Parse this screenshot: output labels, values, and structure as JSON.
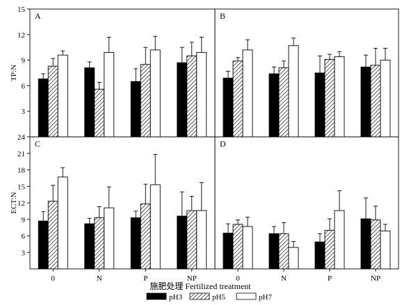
{
  "chart_data": {
    "type": "bar",
    "x_title": "施肥处理 Fertilized treatment",
    "categories": [
      "0",
      "N",
      "P",
      "NP"
    ],
    "legend": [
      {
        "name": "pH3",
        "fill": "solid-black"
      },
      {
        "name": "pH5",
        "fill": "hatched"
      },
      {
        "name": "pH7",
        "fill": "white"
      }
    ],
    "colors": {
      "pH3": "#000000",
      "pH5": "#ffffff",
      "pH7": "#ffffff",
      "axis": "#000000"
    },
    "rows": [
      {
        "ylabel": "TP:N",
        "ylim": [
          0,
          15
        ],
        "yticks": [
          3,
          6,
          9,
          12,
          15
        ],
        "panels": [
          {
            "label": "A",
            "series": [
              {
                "name": "pH3",
                "values": [
                  6.8,
                  8.1,
                  6.5,
                  8.7
                ],
                "errors": [
                  0.6,
                  0.7,
                  1.5,
                  1.8
                ]
              },
              {
                "name": "pH5",
                "values": [
                  8.3,
                  5.6,
                  8.5,
                  9.5
                ],
                "errors": [
                  0.9,
                  0.8,
                  2.0,
                  1.6
                ]
              },
              {
                "name": "pH7",
                "values": [
                  9.6,
                  9.9,
                  10.2,
                  9.9
                ],
                "errors": [
                  0.5,
                  1.8,
                  1.6,
                  1.8
                ]
              }
            ]
          },
          {
            "label": "B",
            "series": [
              {
                "name": "pH3",
                "values": [
                  6.9,
                  7.4,
                  7.5,
                  8.2
                ],
                "errors": [
                  0.8,
                  0.8,
                  2.0,
                  1.4
                ]
              },
              {
                "name": "pH5",
                "values": [
                  8.9,
                  8.1,
                  9.1,
                  8.4
                ],
                "errors": [
                  0.4,
                  0.8,
                  0.6,
                  2.0
                ]
              },
              {
                "name": "pH7",
                "values": [
                  10.2,
                  10.7,
                  9.4,
                  9.0
                ],
                "errors": [
                  1.2,
                  0.9,
                  0.6,
                  1.4
                ]
              }
            ]
          }
        ]
      },
      {
        "ylabel": "ECT:N",
        "ylim": [
          0,
          24
        ],
        "yticks": [
          3,
          6,
          9,
          12,
          15,
          18,
          21,
          24
        ],
        "panels": [
          {
            "label": "C",
            "series": [
              {
                "name": "pH3",
                "values": [
                  8.7,
                  8.2,
                  9.3,
                  9.6
                ],
                "errors": [
                  1.7,
                  1.0,
                  1.2,
                  4.4
                ]
              },
              {
                "name": "pH5",
                "values": [
                  12.3,
                  9.3,
                  11.8,
                  10.6
                ],
                "errors": [
                  2.9,
                  2.0,
                  3.6,
                  2.6
                ]
              },
              {
                "name": "pH7",
                "values": [
                  16.7,
                  11.1,
                  15.3,
                  10.6
                ],
                "errors": [
                  1.7,
                  3.8,
                  5.5,
                  5.1
                ]
              }
            ]
          },
          {
            "label": "D",
            "series": [
              {
                "name": "pH3",
                "values": [
                  6.5,
                  6.4,
                  4.9,
                  9.1
                ],
                "errors": [
                  1.7,
                  1.3,
                  1.5,
                  3.8
                ]
              },
              {
                "name": "pH5",
                "values": [
                  8.1,
                  6.4,
                  7.0,
                  8.9
                ],
                "errors": [
                  0.8,
                  2.0,
                  2.1,
                  2.5
                ]
              },
              {
                "name": "pH7",
                "values": [
                  7.7,
                  3.9,
                  10.6,
                  6.9
                ],
                "errors": [
                  1.7,
                  1.1,
                  3.6,
                  1.2
                ]
              }
            ]
          }
        ]
      }
    ]
  }
}
